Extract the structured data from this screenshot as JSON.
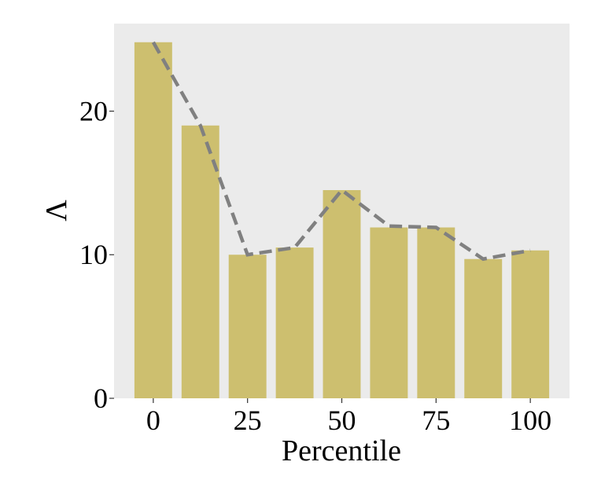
{
  "chart_data": {
    "type": "bar",
    "x_label": "Percentile",
    "y_label": "Λ",
    "x": [
      0,
      12.5,
      25,
      37.5,
      50,
      62.5,
      75,
      87.5,
      100
    ],
    "series": [
      {
        "type": "bar",
        "color": "#cdbf6f",
        "values": [
          24.8,
          19.0,
          10.0,
          10.5,
          14.5,
          11.9,
          11.9,
          9.7,
          10.3
        ]
      },
      {
        "type": "line",
        "color": "#808080",
        "dashed": true,
        "values": [
          24.8,
          19.0,
          10.0,
          10.5,
          14.5,
          12.0,
          11.9,
          9.7,
          10.3
        ]
      }
    ],
    "xlim": [
      -10.4,
      110.4
    ],
    "ylim": [
      0,
      26.1
    ],
    "xticks": [
      0,
      25,
      50,
      75,
      100
    ],
    "yticks": [
      0,
      10,
      20
    ],
    "background": "#ebebeb"
  }
}
